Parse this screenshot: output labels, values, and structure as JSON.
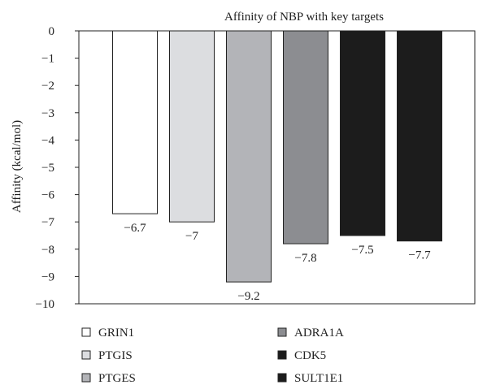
{
  "chart_data": {
    "type": "bar",
    "title": "Affinity of NBP with key targets",
    "xlabel": "",
    "ylabel": "Affinity (kcal/mol)",
    "ylim": [
      -10,
      0
    ],
    "yticks": [
      0,
      -1,
      -2,
      -3,
      -4,
      -5,
      -6,
      -7,
      -8,
      -9,
      -10
    ],
    "ytick_labels": [
      "0",
      "−1",
      "−2",
      "−3",
      "−4",
      "−5",
      "−6",
      "−7",
      "−8",
      "−9",
      "−10"
    ],
    "categories": [
      "GRIN1",
      "PTGIS",
      "PTGES",
      "ADRA1A",
      "CDK5",
      "SULT1E1"
    ],
    "values": [
      -6.7,
      -7,
      -9.2,
      -7.8,
      -7.5,
      -7.7
    ],
    "data_labels": [
      "−6.7",
      "−7",
      "−9.2",
      "−7.8",
      "−7.5",
      "−7.7"
    ],
    "colors": [
      "#ffffff",
      "#dcdde0",
      "#b3b4b8",
      "#8c8d91",
      "#1c1c1c",
      "#1c1c1c"
    ],
    "grid": false,
    "legend_position": "bottom"
  }
}
